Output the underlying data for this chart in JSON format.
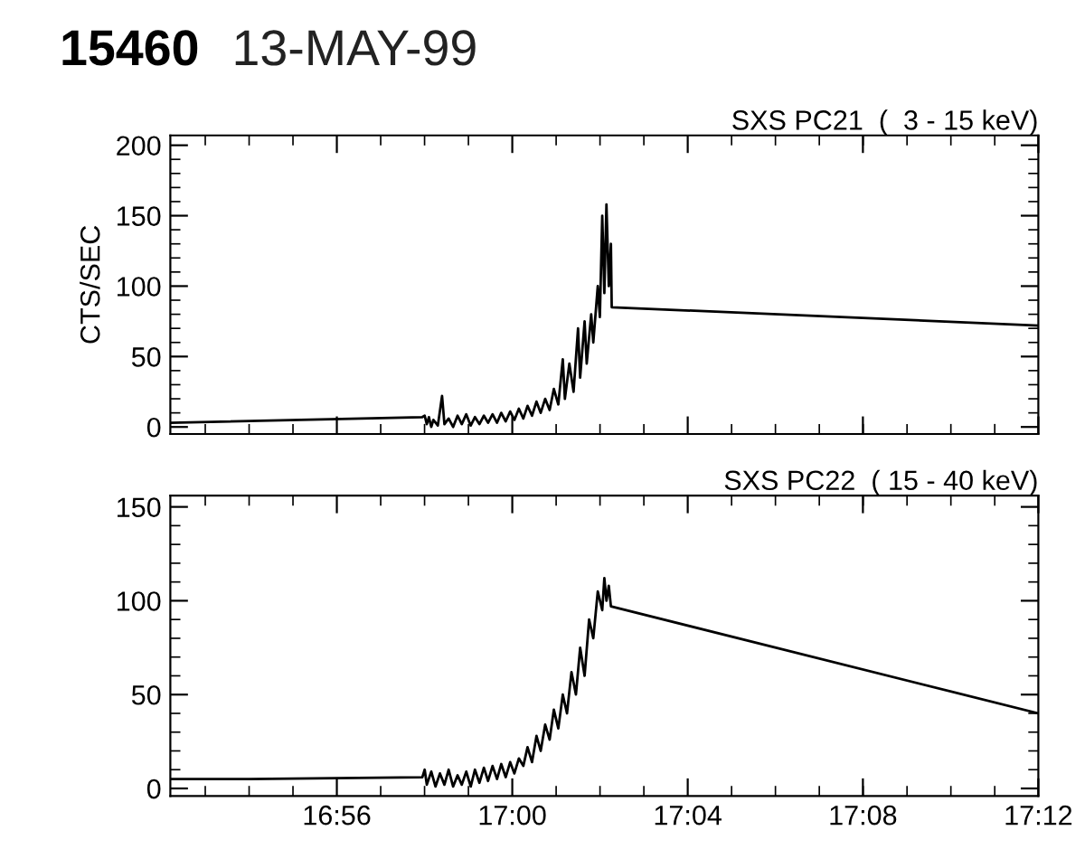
{
  "chart_data": [
    {
      "type": "line",
      "title": "SXS PC21  (  3 - 15 keV)",
      "ylabel": "CTS/SEC",
      "annotations": [
        "15460",
        "13-MAY-99"
      ],
      "tick_labels": "y",
      "grid": false,
      "legend": false,
      "xlim": [
        16.87,
        17.2
      ],
      "xticks": [
        {
          "value": 16.9333,
          "label": null
        },
        {
          "value": 17.0,
          "label": null
        },
        {
          "value": 17.0667,
          "label": null
        },
        {
          "value": 17.1333,
          "label": null
        },
        {
          "value": 17.2,
          "label": null
        }
      ],
      "ylim": [
        -5,
        207
      ],
      "yticks": [
        0,
        50,
        100,
        150,
        200
      ],
      "series": [
        {
          "color": "#000000",
          "x": [
            16.87,
            16.9658,
            16.9667,
            16.9675,
            16.9683,
            16.9692,
            16.97,
            16.9717,
            16.9733,
            16.9742,
            16.9758,
            16.9775,
            16.9792,
            16.9808,
            16.9825,
            16.9842,
            16.9858,
            16.9875,
            16.9892,
            16.9908,
            16.9925,
            16.9942,
            16.9958,
            16.9975,
            16.9992,
            17.0008,
            17.0025,
            17.0042,
            17.0058,
            17.0075,
            17.0092,
            17.0108,
            17.0125,
            17.0142,
            17.0158,
            17.0175,
            17.0192,
            17.02,
            17.0217,
            17.0233,
            17.025,
            17.0258,
            17.0275,
            17.0283,
            17.03,
            17.0308,
            17.0325,
            17.0333,
            17.0342,
            17.035,
            17.0358,
            17.0367,
            17.0375,
            17.0378,
            17.2
          ],
          "values": [
            3,
            7,
            8,
            2,
            7,
            0,
            5,
            1,
            22,
            2,
            6,
            0,
            8,
            2,
            9,
            1,
            7,
            2,
            8,
            3,
            9,
            3,
            10,
            4,
            11,
            5,
            13,
            6,
            15,
            8,
            18,
            10,
            20,
            12,
            27,
            16,
            48,
            20,
            45,
            25,
            70,
            35,
            75,
            45,
            80,
            60,
            100,
            78,
            150,
            95,
            158,
            100,
            130,
            85,
            72
          ]
        }
      ]
    },
    {
      "type": "line",
      "title": "SXS PC22  ( 15 - 40 keV)",
      "grid": false,
      "legend": false,
      "xlim": [
        16.87,
        17.2
      ],
      "xticks": [
        {
          "value": 16.9333,
          "label": "16:56"
        },
        {
          "value": 17.0,
          "label": "17:00"
        },
        {
          "value": 17.0667,
          "label": "17:04"
        },
        {
          "value": 17.1333,
          "label": "17:08"
        },
        {
          "value": 17.2,
          "label": "17:12"
        }
      ],
      "ylim": [
        -4,
        156
      ],
      "yticks": [
        0,
        50,
        100,
        150
      ],
      "series": [
        {
          "color": "#000000",
          "x": [
            16.87,
            16.9,
            16.9658,
            16.9667,
            16.9675,
            16.9692,
            16.9708,
            16.9725,
            16.9742,
            16.9758,
            16.9775,
            16.9792,
            16.9808,
            16.9825,
            16.9842,
            16.9858,
            16.9875,
            16.9892,
            16.9908,
            16.9925,
            16.9942,
            16.9958,
            16.9975,
            16.9992,
            17.0008,
            17.0025,
            17.0042,
            17.0058,
            17.0075,
            17.0092,
            17.0108,
            17.0125,
            17.0142,
            17.0158,
            17.0175,
            17.0192,
            17.0208,
            17.0225,
            17.0242,
            17.0258,
            17.0275,
            17.0292,
            17.0308,
            17.0325,
            17.0342,
            17.035,
            17.0358,
            17.0367,
            17.0375,
            17.2
          ],
          "values": [
            5,
            5,
            6,
            10,
            2,
            9,
            1,
            8,
            2,
            10,
            1,
            7,
            2,
            9,
            1,
            10,
            3,
            11,
            4,
            12,
            5,
            13,
            6,
            14,
            8,
            16,
            12,
            22,
            14,
            28,
            20,
            34,
            26,
            42,
            32,
            50,
            40,
            62,
            50,
            75,
            60,
            90,
            80,
            105,
            95,
            112,
            100,
            108,
            97,
            40
          ]
        }
      ]
    }
  ]
}
